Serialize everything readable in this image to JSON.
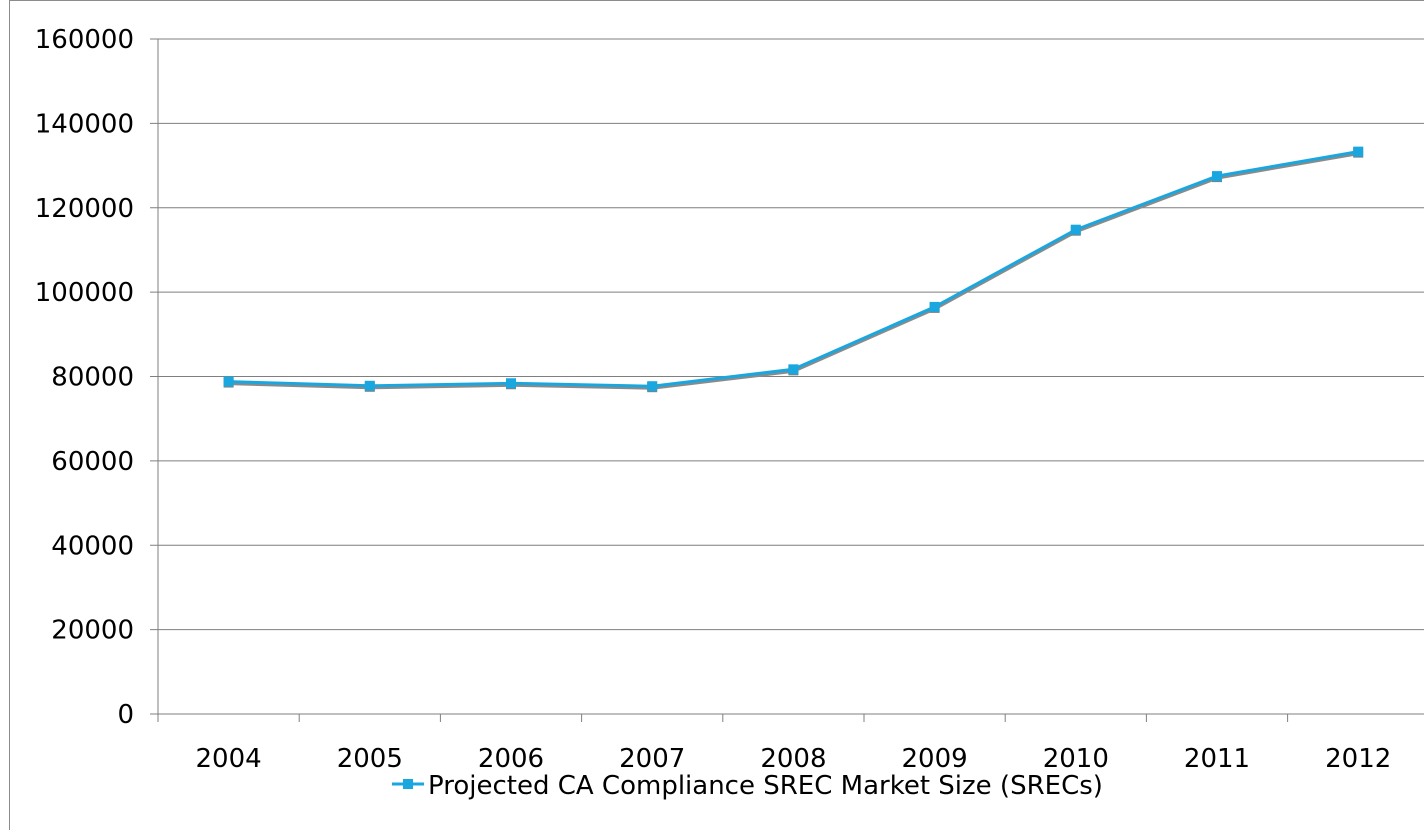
{
  "chart_data": {
    "type": "line",
    "categories": [
      "2004",
      "2005",
      "2006",
      "2007",
      "2008",
      "2009",
      "2010",
      "2011",
      "2012"
    ],
    "series": [
      {
        "name": "Projected CA Compliance SREC Market Size (SRECs)",
        "values": [
          78800,
          77800,
          78400,
          77700,
          81700,
          96500,
          114800,
          127500,
          133300
        ],
        "color": "#1aa7e0"
      }
    ],
    "ylim": [
      0,
      160000
    ],
    "yticks": [
      0,
      20000,
      40000,
      60000,
      80000,
      100000,
      120000,
      140000,
      160000
    ],
    "grid": "horizontal",
    "legend": "bottom",
    "title": "",
    "xlabel": "",
    "ylabel": ""
  }
}
